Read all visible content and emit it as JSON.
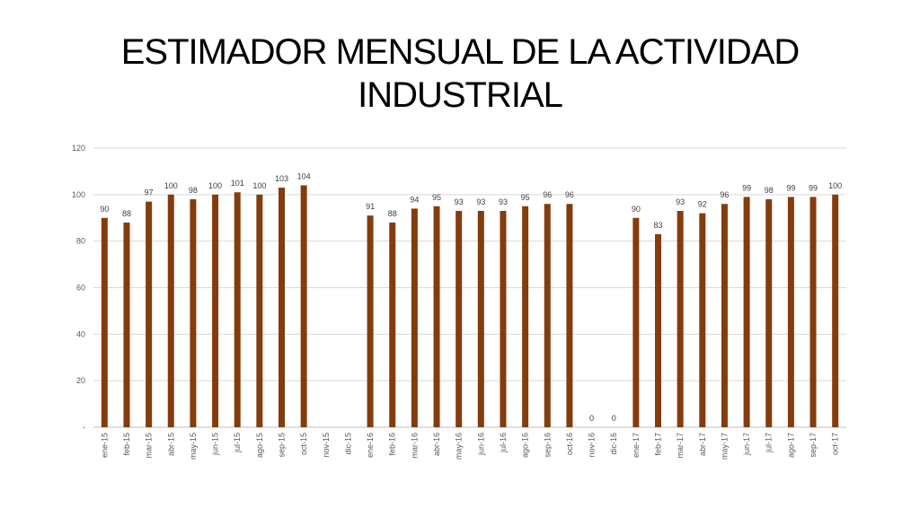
{
  "slide": {
    "title_line1": "ESTIMADOR MENSUAL DE LA ACTIVIDAD",
    "title_line2": "INDUSTRIAL"
  },
  "chart_data": {
    "type": "bar",
    "title": "ESTIMADOR MENSUAL DE LA ACTIVIDAD INDUSTRIAL",
    "xlabel": "",
    "ylabel": "",
    "ylim": [
      0,
      120
    ],
    "yticks": [
      0,
      20,
      40,
      60,
      80,
      100,
      120
    ],
    "ytick_labels": [
      "-",
      "20",
      "40",
      "60",
      "80",
      "100",
      "120"
    ],
    "grid": true,
    "bar_color": "#843C0C",
    "categories": [
      "ene-15",
      "feb-15",
      "mar-15",
      "abr-15",
      "may-15",
      "jun-15",
      "jul-15",
      "ago-15",
      "sep-15",
      "oct-15",
      "nov-15",
      "dic-15",
      "ene-16",
      "feb-16",
      "mar-16",
      "abr-16",
      "may-16",
      "jun-16",
      "jul-16",
      "ago-16",
      "sep-16",
      "oct-16",
      "nov-16",
      "dic-16",
      "ene-17",
      "feb-17",
      "mar-17",
      "abr-17",
      "may-17",
      "jun-17",
      "jul-17",
      "ago-17",
      "sep-17",
      "oct-17"
    ],
    "values": [
      90,
      88,
      97,
      100,
      98,
      100,
      101,
      100,
      103,
      104,
      null,
      null,
      91,
      88,
      94,
      95,
      93,
      93,
      93,
      95,
      96,
      96,
      0,
      0,
      90,
      83,
      93,
      92,
      96,
      99,
      98,
      99,
      99,
      100
    ],
    "data_labels": [
      "90",
      "88",
      "97",
      "100",
      "98",
      "100",
      "101",
      "100",
      "103",
      "104",
      "",
      "",
      "91",
      "88",
      "94",
      "95",
      "93",
      "93",
      "93",
      "95",
      "96",
      "96",
      "0",
      "0",
      "90",
      "83",
      "93",
      "92",
      "96",
      "99",
      "98",
      "99",
      "99",
      "100"
    ]
  }
}
